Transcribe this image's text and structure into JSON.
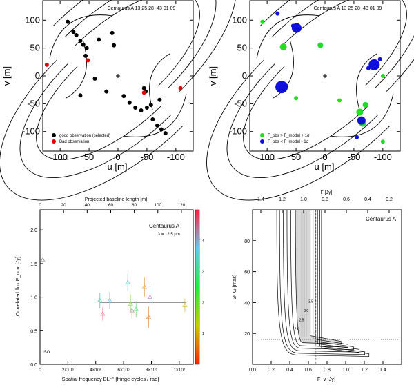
{
  "chart_data": [
    {
      "type": "scatter",
      "panel": "uv-coverage",
      "title": "Centaurus A  13 25 28 -43 01 09",
      "xlabel": "u [m]",
      "ylabel": "v [m]",
      "xlim": [
        130,
        -130
      ],
      "ylim": [
        -135,
        135
      ],
      "xticks": [
        100,
        50,
        0,
        -50,
        -100
      ],
      "yticks": [
        100,
        50,
        0,
        -50,
        -100
      ],
      "legend": [
        "good observation (selected)",
        "Bad observation"
      ],
      "series": [
        {
          "name": "good observation (selected)",
          "color": "#000000",
          "points": [
            [
              87,
              97
            ],
            [
              77,
              79
            ],
            [
              72,
              73
            ],
            [
              65,
              63
            ],
            [
              60,
              56
            ],
            [
              54,
              50
            ],
            [
              56,
              36
            ],
            [
              33,
              65
            ],
            [
              7,
              55
            ],
            [
              -10,
              -36
            ],
            [
              -20,
              -48
            ],
            [
              -30,
              -57
            ],
            [
              -40,
              -62
            ],
            [
              -50,
              -57
            ],
            [
              -57,
              -52
            ],
            [
              -72,
              -43
            ],
            [
              -60,
              -78
            ],
            [
              -68,
              -89
            ],
            [
              -75,
              -96
            ],
            [
              -82,
              -103
            ],
            [
              40,
              -5
            ],
            [
              65,
              -35
            ],
            [
              10,
              77
            ],
            [
              20,
              -28
            ],
            [
              -45,
              -22
            ],
            [
              -48,
              -28
            ]
          ]
        },
        {
          "name": "Bad observation",
          "color": "#e00000",
          "points": [
            [
              123,
              20
            ],
            [
              52,
              28
            ],
            [
              -45,
              -30
            ],
            [
              -108,
              -22
            ]
          ]
        }
      ]
    },
    {
      "type": "scatter",
      "panel": "uv-flux",
      "title": "Centaurus A  13 25 28 -43 01 09",
      "xlabel": "u [m]",
      "ylabel": "v [m]",
      "xlim": [
        130,
        -130
      ],
      "ylim": [
        -135,
        135
      ],
      "legend": [
        "F_obs > F_model + 1σ",
        "F_obs < F_model - 1σ"
      ],
      "series": [
        {
          "name": "F_obs > F_model + 1σ",
          "color": "#22dd22",
          "points": [
            [
              108,
              97
            ],
            [
              72,
              52
            ],
            [
              8,
              55
            ],
            [
              -25,
              -44
            ],
            [
              -70,
              -52
            ],
            [
              -60,
              -65
            ],
            [
              -65,
              -85
            ],
            [
              -100,
              -118
            ],
            [
              -100,
              0
            ],
            [
              50,
              -40
            ]
          ]
        },
        {
          "name": "F_obs < F_model - 1σ",
          "color": "#1010dd",
          "points": [
            [
              82,
              112
            ],
            [
              49,
              86
            ],
            [
              55,
              90
            ],
            [
              -95,
              30
            ],
            [
              -85,
              20
            ],
            [
              -75,
              14
            ],
            [
              75,
              -20
            ],
            [
              -63,
              -80
            ],
            [
              -55,
              -110
            ]
          ]
        }
      ]
    },
    {
      "type": "scatter",
      "panel": "visibility",
      "title": "Centaurus A",
      "subtitle": "λ = 12.5 μm",
      "xlabel": "Spatial frequency BL⁻¹ [fringe cycles / rad]",
      "ylabel": "Correlated flux F_corr [Jy]",
      "x2label": "Projected baseline length [m]",
      "ylim": [
        0,
        2.3
      ],
      "yticks": [
        0.0,
        0.5,
        1.0,
        1.5,
        2.0
      ],
      "xticks_label": [
        "0",
        "2×10⁶",
        "4×10⁶",
        "6×10⁶",
        "8×10⁶",
        "1×10⁷"
      ],
      "x2ticks": [
        0,
        20,
        40,
        60,
        80,
        100,
        120
      ],
      "colorbar_ticks": [
        "1",
        "2",
        "3",
        "4"
      ],
      "model_flux": 0.92,
      "points": [
        {
          "x": 4300000,
          "y": 0.95,
          "err": 0.12,
          "color": "#55ccaa"
        },
        {
          "x": 4500000,
          "y": 0.75,
          "err": 0.1,
          "color": "#ff8899"
        },
        {
          "x": 5000000,
          "y": 0.95,
          "err": 0.13,
          "color": "#66ccee"
        },
        {
          "x": 6300000,
          "y": 1.22,
          "err": 0.13,
          "color": "#77ccdd"
        },
        {
          "x": 6500000,
          "y": 0.9,
          "err": 0.14,
          "color": "#99dd66"
        },
        {
          "x": 6600000,
          "y": 0.8,
          "err": 0.12,
          "color": "#cc99aa"
        },
        {
          "x": 6900000,
          "y": 0.82,
          "err": 0.12,
          "color": "#77dd88"
        },
        {
          "x": 7500000,
          "y": 1.15,
          "err": 0.14,
          "color": "#ddaa55"
        },
        {
          "x": 7800000,
          "y": 0.7,
          "err": 0.16,
          "color": "#ee9955"
        },
        {
          "x": 7900000,
          "y": 1.0,
          "err": 0.16,
          "color": "#cc99cc"
        },
        {
          "x": 10400000,
          "y": 0.88,
          "err": 0.1,
          "color": "#ddbb55"
        },
        {
          "x": 0,
          "y": 1.55,
          "err": 0,
          "color": "#888888"
        }
      ],
      "corner_label": "ISO"
    },
    {
      "type": "heatmap",
      "panel": "chi2",
      "title": "Centaurus A",
      "xlabel": "F_ν [Jy]",
      "ylabel": "Θ_G [mas]",
      "x2label": "Γ [Jy]",
      "xlim": [
        0.0,
        1.6
      ],
      "ylim": [
        0,
        100
      ],
      "xticks": [
        0.0,
        0.2,
        0.4,
        0.6,
        0.8,
        1.0,
        1.2,
        1.4
      ],
      "yticks": [
        20,
        40,
        60,
        80
      ],
      "x2ticks": [
        "1.4",
        "1.2",
        "1.0",
        "0.8",
        "0.6",
        "0.4",
        "0.2"
      ],
      "best_fit": {
        "F": 0.68,
        "theta": 16
      },
      "contour_levels": [
        "2.0",
        "2.5",
        "3.0",
        "3.5"
      ]
    }
  ]
}
